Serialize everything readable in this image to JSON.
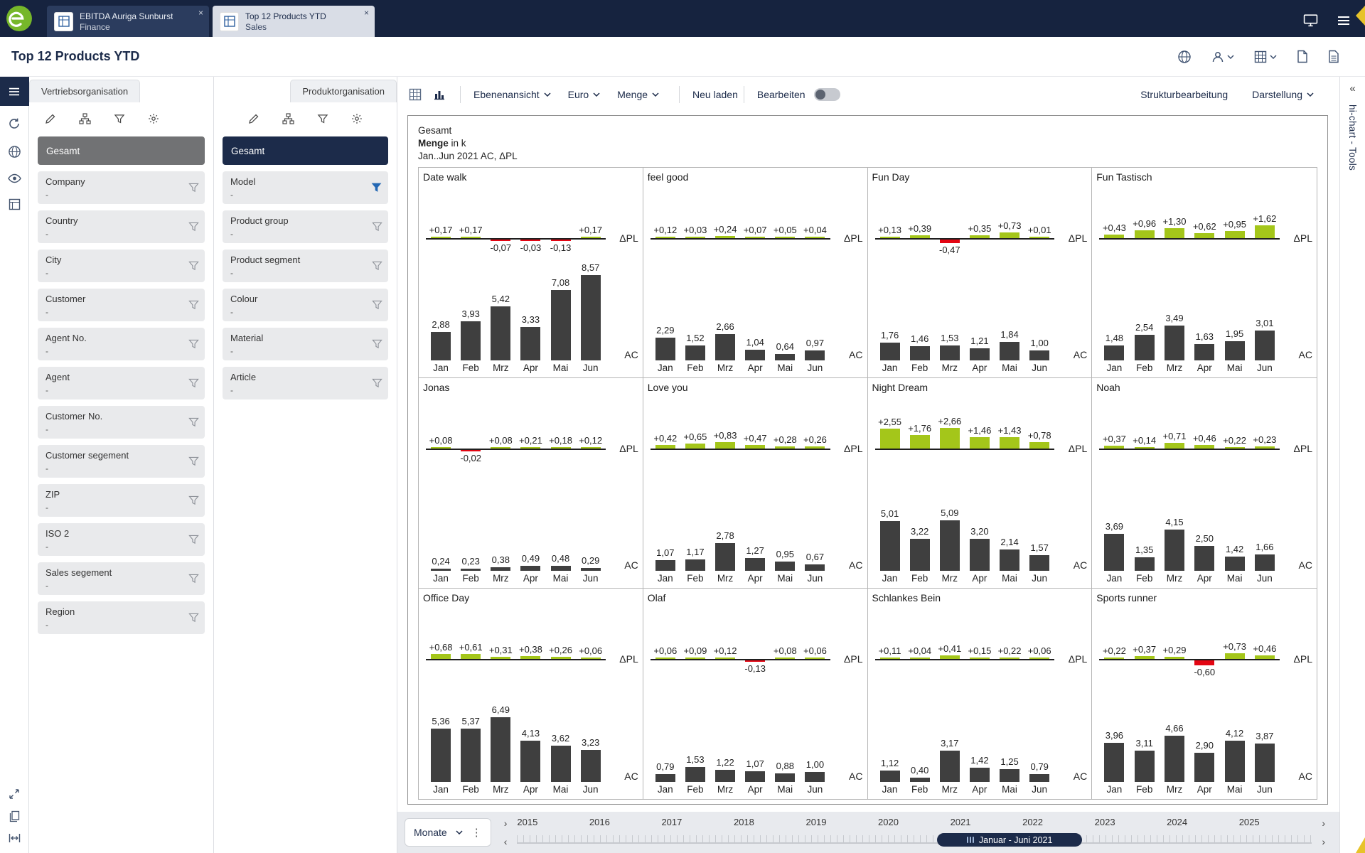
{
  "icons": {
    "close": "×",
    "dots_vertical": "⋮",
    "collapse": "«",
    "arrow_left": "‹",
    "arrow_right": "›"
  },
  "colors": {
    "navy": "#1c2b4a",
    "topbar": "#16233f",
    "accent_blue": "#2468b4",
    "positive_green": "#a4c61a",
    "negative_red": "#e30613",
    "bar_gray": "#3f3f3f",
    "logo_green": "#76b72a"
  },
  "topbar": {
    "tabs": [
      {
        "title": "EBITDA Auriga Sunburst",
        "subtitle": "Finance"
      },
      {
        "title": "Top 12 Products YTD",
        "subtitle": "Sales"
      }
    ]
  },
  "header": {
    "title": "Top 12 Products YTD"
  },
  "filters": {
    "vertrieb": {
      "tab": "Vertriebsorganisation",
      "selected": "Gesamt",
      "items": [
        {
          "label": "Company",
          "value": "-"
        },
        {
          "label": "Country",
          "value": "-"
        },
        {
          "label": "City",
          "value": "-"
        },
        {
          "label": "Customer",
          "value": "-"
        },
        {
          "label": "Agent No.",
          "value": "-"
        },
        {
          "label": "Agent",
          "value": "-"
        },
        {
          "label": "Customer No.",
          "value": "-"
        },
        {
          "label": "Customer segement",
          "value": "-"
        },
        {
          "label": "ZIP",
          "value": "-"
        },
        {
          "label": "ISO 2",
          "value": "-"
        },
        {
          "label": "Sales segement",
          "value": "-"
        },
        {
          "label": "Region",
          "value": "-"
        }
      ]
    },
    "produkt": {
      "tab": "Produktorganisation",
      "selected": "Gesamt",
      "items": [
        {
          "label": "Model",
          "value": "-",
          "filtered": true
        },
        {
          "label": "Product group",
          "value": "-"
        },
        {
          "label": "Product segment",
          "value": "-"
        },
        {
          "label": "Colour",
          "value": "-"
        },
        {
          "label": "Material",
          "value": "-"
        },
        {
          "label": "Article",
          "value": "-"
        }
      ]
    }
  },
  "toolbar": {
    "level_view": "Ebenenansicht",
    "currency": "Euro",
    "measure": "Menge",
    "reload": "Neu laden",
    "edit": "Bearbeiten",
    "structure": "Strukturbearbeitung",
    "display": "Darstellung"
  },
  "chart_data": {
    "type": "bar",
    "title": "Gesamt",
    "measure_bold": "Menge",
    "measure_suffix": " in k",
    "period": "Jan..Jun 2021 AC, ΔPL",
    "delta_label": "ΔPL",
    "ac_label": "AC",
    "months": [
      "Jan",
      "Feb",
      "Mrz",
      "Apr",
      "Mai",
      "Jun"
    ],
    "products": [
      {
        "name": "Date walk",
        "delta": [
          0.17,
          0.17,
          -0.07,
          -0.03,
          -0.13,
          0.17
        ],
        "ac": [
          2.88,
          3.93,
          5.42,
          3.33,
          7.08,
          8.57
        ]
      },
      {
        "name": "feel good",
        "delta": [
          0.12,
          0.03,
          0.24,
          0.07,
          0.05,
          0.04
        ],
        "ac": [
          2.29,
          1.52,
          2.66,
          1.04,
          0.64,
          0.97
        ]
      },
      {
        "name": "Fun Day",
        "delta": [
          0.13,
          0.39,
          -0.47,
          0.35,
          0.73,
          0.01
        ],
        "ac": [
          1.76,
          1.46,
          1.53,
          1.21,
          1.84,
          1.0
        ]
      },
      {
        "name": "Fun Tastisch",
        "delta": [
          0.43,
          0.96,
          1.3,
          0.62,
          0.95,
          1.62
        ],
        "ac": [
          1.48,
          2.54,
          3.49,
          1.63,
          1.95,
          3.01
        ]
      },
      {
        "name": "Jonas",
        "delta": [
          0.08,
          -0.02,
          0.08,
          0.21,
          0.18,
          0.12
        ],
        "ac": [
          0.24,
          0.23,
          0.38,
          0.49,
          0.48,
          0.29
        ]
      },
      {
        "name": "Love you",
        "delta": [
          0.42,
          0.65,
          0.83,
          0.47,
          0.28,
          0.26
        ],
        "ac": [
          1.07,
          1.17,
          2.78,
          1.27,
          0.95,
          0.67
        ]
      },
      {
        "name": "Night Dream",
        "delta": [
          2.55,
          1.76,
          2.66,
          1.46,
          1.43,
          0.78
        ],
        "ac": [
          5.01,
          3.22,
          5.09,
          3.2,
          2.14,
          1.57
        ]
      },
      {
        "name": "Noah",
        "delta": [
          0.37,
          0.14,
          0.71,
          0.46,
          0.22,
          0.23
        ],
        "ac": [
          3.69,
          1.35,
          4.15,
          2.5,
          1.42,
          1.66
        ]
      },
      {
        "name": "Office Day",
        "delta": [
          0.68,
          0.61,
          0.31,
          0.38,
          0.26,
          0.06
        ],
        "ac": [
          5.36,
          5.37,
          6.49,
          4.13,
          3.62,
          3.23
        ]
      },
      {
        "name": "Olaf",
        "delta": [
          0.06,
          0.09,
          0.12,
          -0.13,
          0.08,
          0.06
        ],
        "ac": [
          0.79,
          1.53,
          1.22,
          1.07,
          0.88,
          1.0
        ]
      },
      {
        "name": "Schlankes Bein",
        "delta": [
          0.11,
          0.04,
          0.41,
          0.15,
          0.22,
          0.06
        ],
        "ac": [
          1.12,
          0.4,
          3.17,
          1.42,
          1.25,
          0.79
        ]
      },
      {
        "name": "Sports runner",
        "delta": [
          0.22,
          0.37,
          0.29,
          -0.6,
          0.73,
          0.46
        ],
        "ac": [
          3.96,
          3.11,
          4.66,
          2.9,
          4.12,
          3.87
        ]
      }
    ]
  },
  "timeline": {
    "mode": "Monate",
    "years": [
      "2015",
      "2016",
      "2017",
      "2018",
      "2019",
      "2020",
      "2021",
      "2022",
      "2023",
      "2024",
      "2025"
    ],
    "range_label": "Januar - Juni 2021"
  },
  "right_rail": {
    "label": "hi-chart - Tools"
  }
}
